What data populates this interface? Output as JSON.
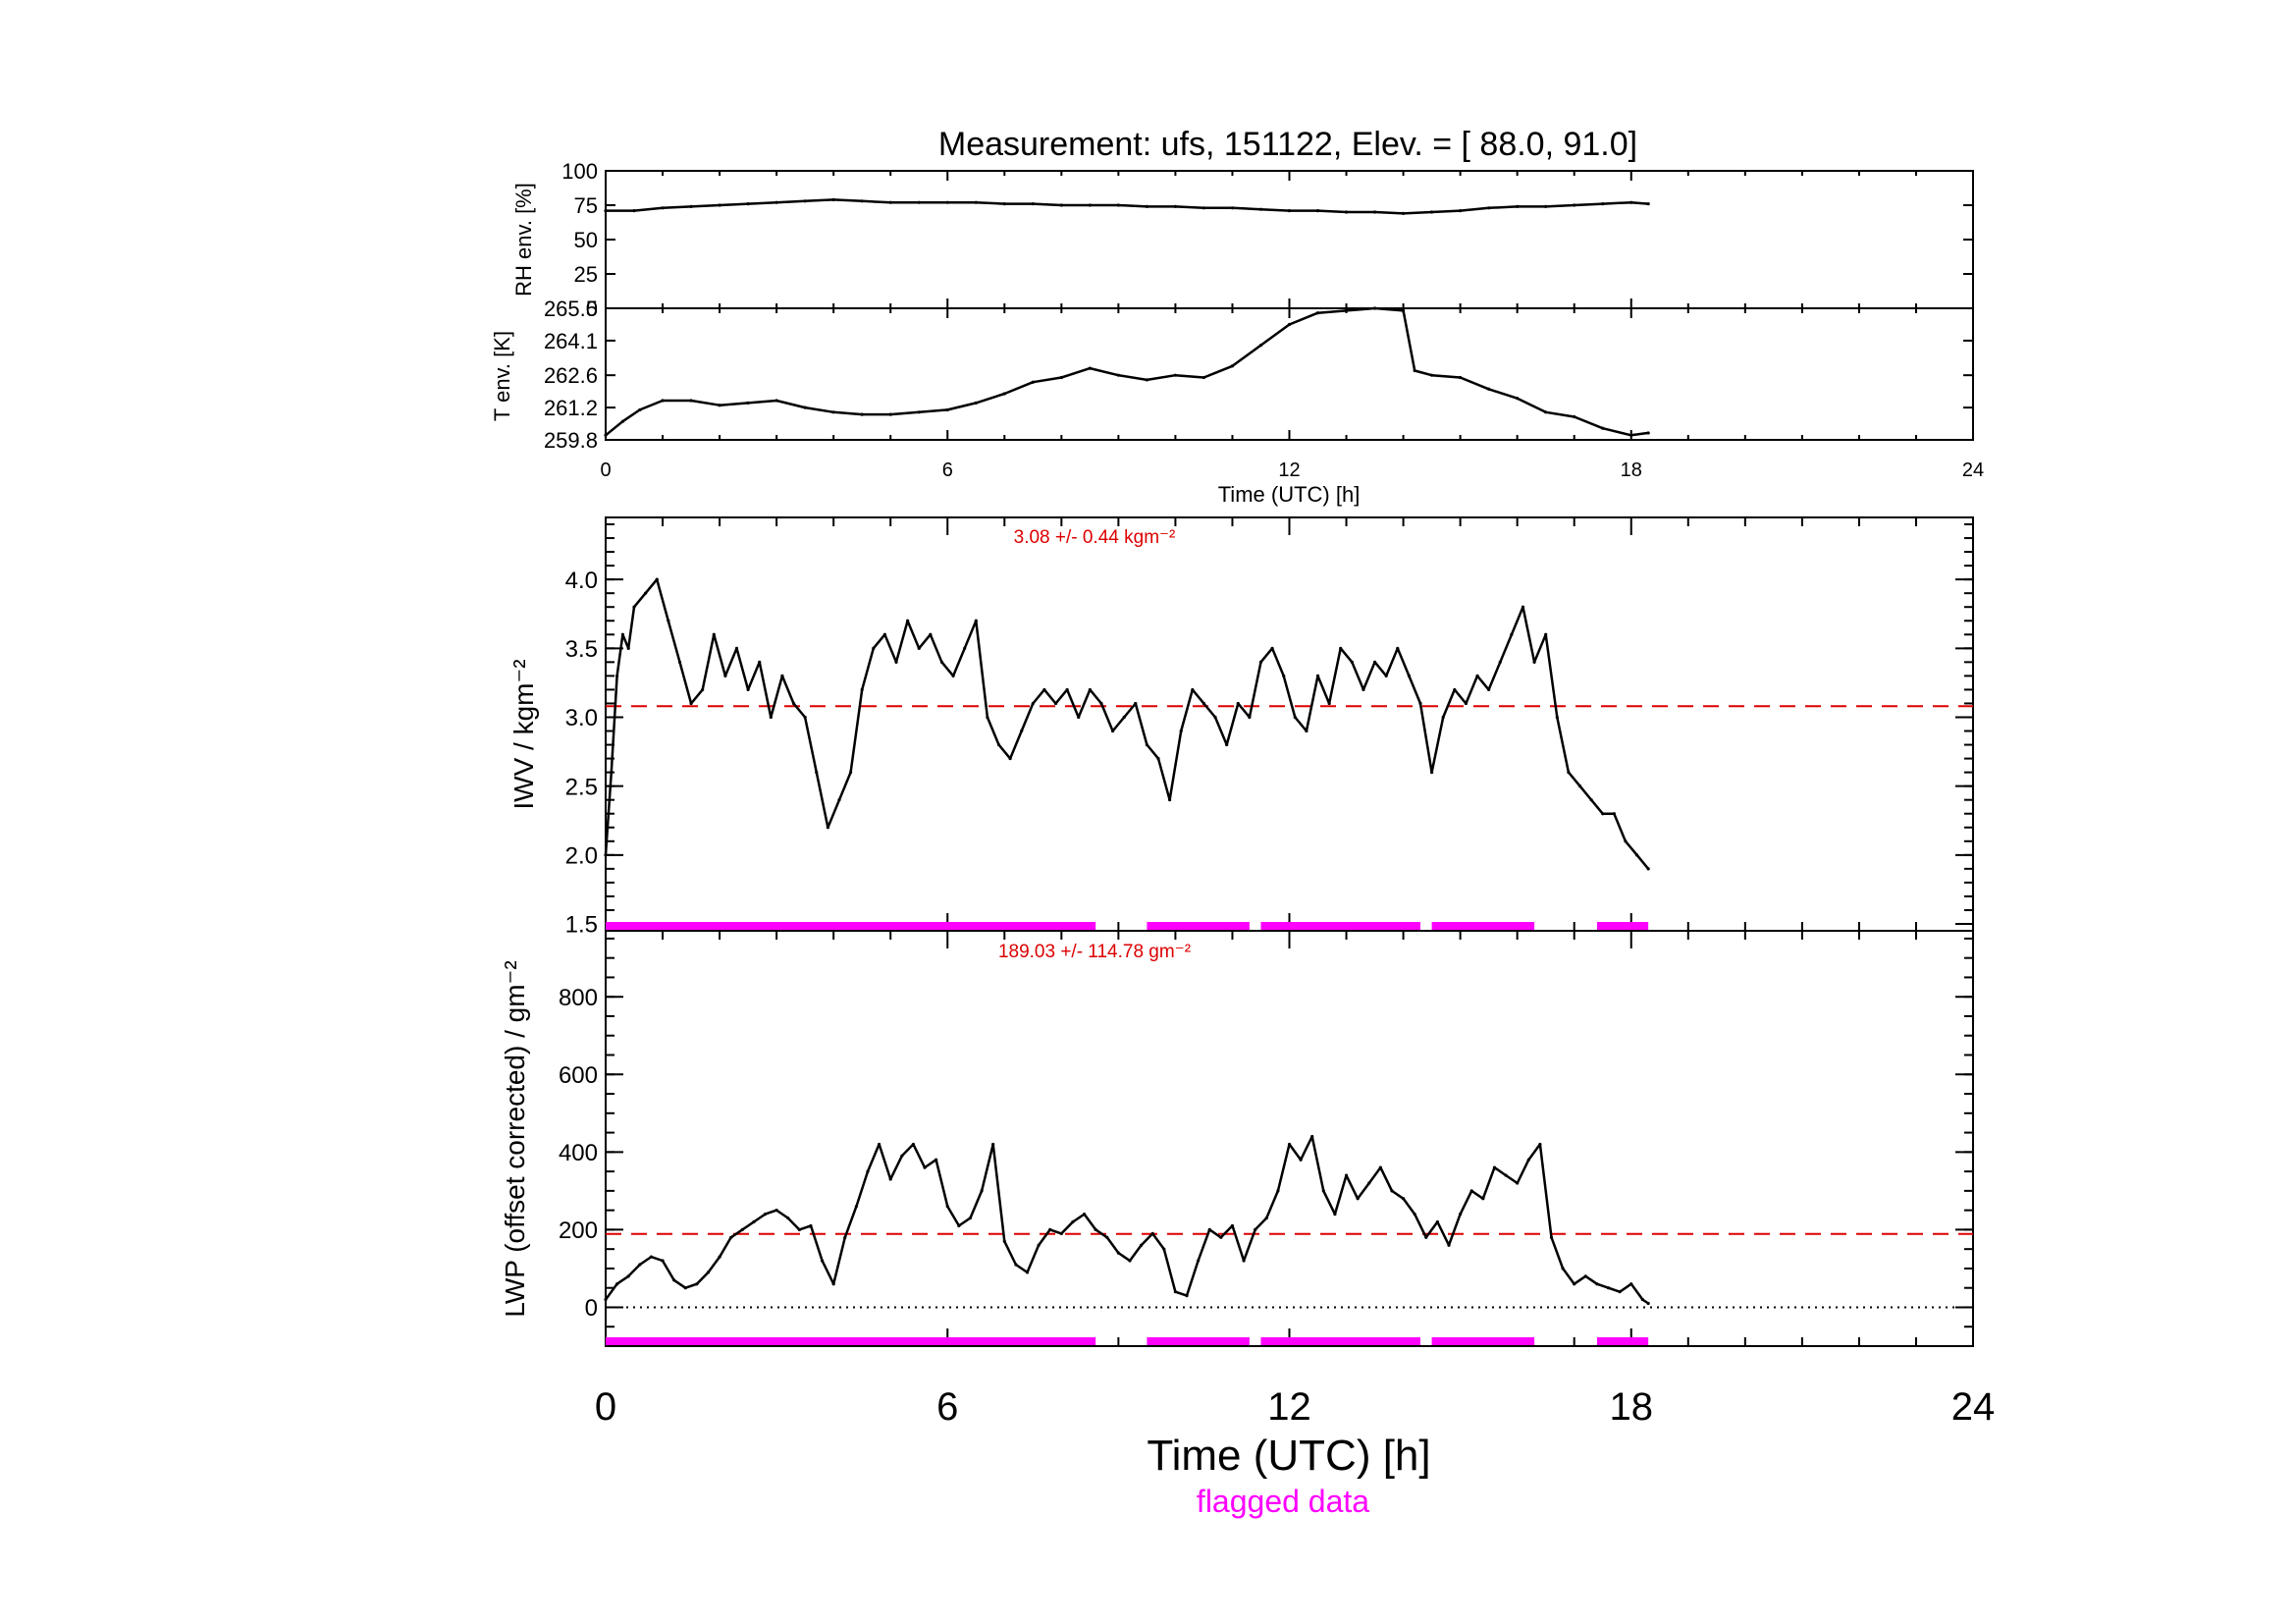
{
  "title": "Measurement: ufs, 151122, Elev. = [ 88.0,  91.0]",
  "colors": {
    "line": "#000000",
    "mean": "#dd0000",
    "flag": "#ff00ff"
  },
  "flag_label": "flagged data",
  "chart_data": [
    {
      "id": "rh",
      "type": "line",
      "ylabel": "RH env. [%]",
      "ylim": [
        0,
        100
      ],
      "yticks": [
        "0",
        "25",
        "50",
        "75",
        "100"
      ],
      "ytick_values": [
        0,
        25,
        50,
        75,
        100
      ],
      "xlim": [
        0,
        24
      ],
      "xticks": [
        0,
        6,
        12,
        18,
        24
      ],
      "x": [
        0,
        0.5,
        1,
        1.5,
        2,
        2.5,
        3,
        3.5,
        4,
        4.5,
        5,
        5.5,
        6,
        6.5,
        7,
        7.5,
        8,
        8.5,
        9,
        9.5,
        10,
        10.5,
        11,
        11.5,
        12,
        12.5,
        13,
        13.5,
        14,
        14.5,
        15,
        15.5,
        16,
        16.5,
        17,
        17.5,
        18,
        18.3
      ],
      "values": [
        71,
        71,
        73,
        74,
        75,
        76,
        77,
        78,
        79,
        78,
        77,
        77,
        77,
        77,
        76,
        76,
        75,
        75,
        75,
        74,
        74,
        73,
        73,
        72,
        71,
        71,
        70,
        70,
        69,
        70,
        71,
        73,
        74,
        74,
        75,
        76,
        77,
        76
      ]
    },
    {
      "id": "t",
      "type": "line",
      "ylabel": "T env. [K]",
      "ylim": [
        259.8,
        265.5
      ],
      "yticks": [
        "259.8",
        "261.2",
        "262.6",
        "264.1",
        "265.5"
      ],
      "ytick_values": [
        259.8,
        261.2,
        262.6,
        264.1,
        265.5
      ],
      "xlim": [
        0,
        24
      ],
      "xticks": [
        "0",
        "6",
        "12",
        "18",
        "24"
      ],
      "xlabel": "Time (UTC) [h]",
      "x": [
        0,
        0.3,
        0.6,
        1,
        1.5,
        2,
        2.5,
        3,
        3.5,
        4,
        4.5,
        5,
        5.5,
        6,
        6.5,
        7,
        7.5,
        8,
        8.5,
        9,
        9.5,
        10,
        10.5,
        11,
        11.5,
        12,
        12.5,
        13,
        13.5,
        14,
        14.2,
        14.5,
        15,
        15.5,
        16,
        16.5,
        17,
        17.5,
        18,
        18.3
      ],
      "values": [
        260.0,
        260.6,
        261.1,
        261.5,
        261.5,
        261.3,
        261.4,
        261.5,
        261.2,
        261.0,
        260.9,
        260.9,
        261.0,
        261.1,
        261.4,
        261.8,
        262.3,
        262.5,
        262.9,
        262.6,
        262.4,
        262.6,
        262.5,
        263.0,
        263.9,
        264.8,
        265.3,
        265.4,
        265.5,
        265.4,
        262.8,
        262.6,
        262.5,
        262.0,
        261.6,
        261.0,
        260.8,
        260.3,
        260.0,
        260.1
      ]
    },
    {
      "id": "iwv",
      "type": "line",
      "ylabel": "IWV / kgm⁻²",
      "ylim": [
        1.45,
        4.45
      ],
      "yticks": [
        "1.5",
        "2.0",
        "2.5",
        "3.0",
        "3.5",
        "4.0"
      ],
      "ytick_values": [
        1.5,
        2.0,
        2.5,
        3.0,
        3.5,
        4.0
      ],
      "xlim": [
        0,
        24
      ],
      "xticks": [
        0,
        6,
        12,
        18,
        24
      ],
      "mean": 3.08,
      "annotation": "3.08 +/-   0.44 kgm⁻²",
      "x": [
        0,
        0.1,
        0.2,
        0.3,
        0.4,
        0.5,
        0.7,
        0.9,
        1.1,
        1.3,
        1.5,
        1.7,
        1.9,
        2.1,
        2.3,
        2.5,
        2.7,
        2.9,
        3.1,
        3.3,
        3.5,
        3.7,
        3.9,
        4.1,
        4.3,
        4.5,
        4.7,
        4.9,
        5.1,
        5.3,
        5.5,
        5.7,
        5.9,
        6.1,
        6.3,
        6.5,
        6.7,
        6.9,
        7.1,
        7.3,
        7.5,
        7.7,
        7.9,
        8.1,
        8.3,
        8.5,
        8.7,
        8.9,
        9.1,
        9.3,
        9.5,
        9.7,
        9.9,
        10.1,
        10.3,
        10.5,
        10.7,
        10.9,
        11.1,
        11.3,
        11.5,
        11.7,
        11.9,
        12.1,
        12.3,
        12.5,
        12.7,
        12.9,
        13.1,
        13.3,
        13.5,
        13.7,
        13.9,
        14.1,
        14.3,
        14.5,
        14.7,
        14.9,
        15.1,
        15.3,
        15.5,
        15.7,
        15.9,
        16.1,
        16.3,
        16.5,
        16.7,
        16.9,
        17.1,
        17.3,
        17.5,
        17.7,
        17.9,
        18.1,
        18.3
      ],
      "values": [
        2.0,
        2.6,
        3.3,
        3.6,
        3.5,
        3.8,
        3.9,
        4.0,
        3.7,
        3.4,
        3.1,
        3.2,
        3.6,
        3.3,
        3.5,
        3.2,
        3.4,
        3.0,
        3.3,
        3.1,
        3.0,
        2.6,
        2.2,
        2.4,
        2.6,
        3.2,
        3.5,
        3.6,
        3.4,
        3.7,
        3.5,
        3.6,
        3.4,
        3.3,
        3.5,
        3.7,
        3.0,
        2.8,
        2.7,
        2.9,
        3.1,
        3.2,
        3.1,
        3.2,
        3.0,
        3.2,
        3.1,
        2.9,
        3.0,
        3.1,
        2.8,
        2.7,
        2.4,
        2.9,
        3.2,
        3.1,
        3.0,
        2.8,
        3.1,
        3.0,
        3.4,
        3.5,
        3.3,
        3.0,
        2.9,
        3.3,
        3.1,
        3.5,
        3.4,
        3.2,
        3.4,
        3.3,
        3.5,
        3.3,
        3.1,
        2.6,
        3.0,
        3.2,
        3.1,
        3.3,
        3.2,
        3.4,
        3.6,
        3.8,
        3.4,
        3.6,
        3.0,
        2.6,
        2.5,
        2.4,
        2.3,
        2.3,
        2.1,
        2.0,
        1.9
      ]
    },
    {
      "id": "lwp",
      "type": "line",
      "ylabel": "LWP (offset corrected) / gm⁻²",
      "ylim": [
        -100,
        970
      ],
      "yticks": [
        "0",
        "200",
        "400",
        "600",
        "800"
      ],
      "ytick_values": [
        0,
        200,
        400,
        600,
        800
      ],
      "xlim": [
        0,
        24
      ],
      "xticks": [
        "0",
        "6",
        "12",
        "18",
        "24"
      ],
      "xlabel": "Time (UTC) [h]",
      "mean": 189.03,
      "annotation": "189.03 +/- 114.78 gm⁻²",
      "x": [
        0,
        0.2,
        0.4,
        0.6,
        0.8,
        1.0,
        1.2,
        1.4,
        1.6,
        1.8,
        2.0,
        2.2,
        2.4,
        2.6,
        2.8,
        3.0,
        3.2,
        3.4,
        3.6,
        3.8,
        4.0,
        4.2,
        4.4,
        4.6,
        4.8,
        5.0,
        5.2,
        5.4,
        5.6,
        5.8,
        6.0,
        6.2,
        6.4,
        6.6,
        6.8,
        7.0,
        7.2,
        7.4,
        7.6,
        7.8,
        8.0,
        8.2,
        8.4,
        8.6,
        8.8,
        9.0,
        9.2,
        9.4,
        9.6,
        9.8,
        10.0,
        10.2,
        10.4,
        10.6,
        10.8,
        11.0,
        11.2,
        11.4,
        11.6,
        11.8,
        12.0,
        12.2,
        12.4,
        12.6,
        12.8,
        13.0,
        13.2,
        13.4,
        13.6,
        13.8,
        14.0,
        14.2,
        14.4,
        14.6,
        14.8,
        15.0,
        15.2,
        15.4,
        15.6,
        15.8,
        16.0,
        16.2,
        16.4,
        16.6,
        16.8,
        17.0,
        17.2,
        17.4,
        17.6,
        17.8,
        18.0,
        18.2,
        18.3
      ],
      "values": [
        20,
        60,
        80,
        110,
        130,
        120,
        70,
        50,
        60,
        90,
        130,
        180,
        200,
        220,
        240,
        250,
        230,
        200,
        210,
        120,
        60,
        180,
        260,
        350,
        420,
        330,
        390,
        420,
        360,
        380,
        260,
        210,
        230,
        300,
        420,
        170,
        110,
        90,
        160,
        200,
        190,
        220,
        240,
        200,
        180,
        140,
        120,
        160,
        190,
        150,
        40,
        30,
        120,
        200,
        180,
        210,
        120,
        200,
        230,
        300,
        420,
        380,
        440,
        300,
        240,
        340,
        280,
        320,
        360,
        300,
        280,
        240,
        180,
        220,
        160,
        240,
        300,
        280,
        360,
        340,
        320,
        380,
        420,
        180,
        100,
        60,
        80,
        60,
        50,
        40,
        60,
        20,
        10
      ]
    }
  ],
  "flags": {
    "segments": [
      [
        0,
        8.6
      ],
      [
        9.5,
        11.3
      ],
      [
        11.5,
        14.3
      ],
      [
        14.5,
        16.3
      ],
      [
        17.4,
        18.3
      ]
    ]
  }
}
